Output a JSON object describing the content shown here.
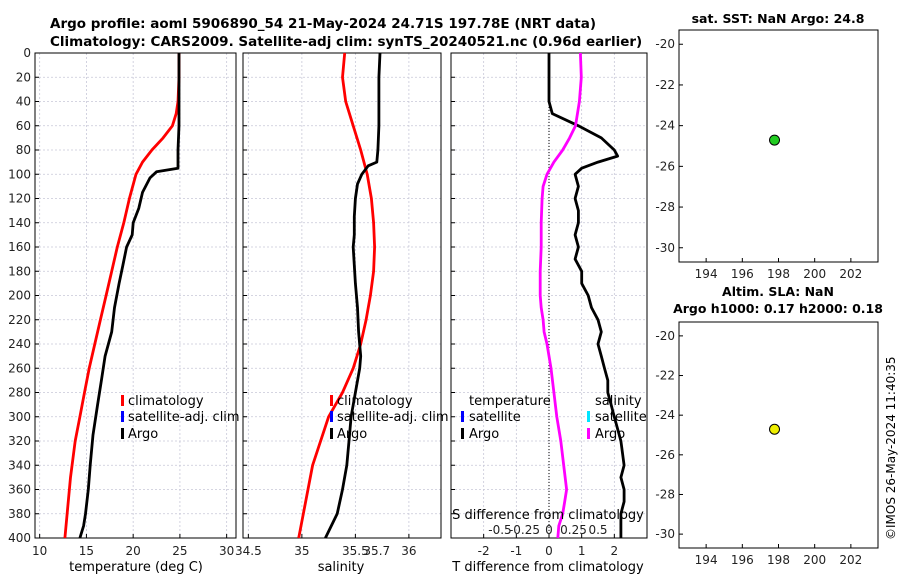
{
  "header": {
    "title_line1": "Argo profile: aoml 5906890_54 21-May-2024 24.71S 197.78E (NRT data)",
    "title_line2": "Climatology: CARS2009. Satellite-adj clim: synTS_20240521.nc (0.96d earlier)"
  },
  "stamp": "©IMOS 26-May-2024 11:40:35",
  "colors": {
    "climatology": "#ff0000",
    "satellite_adj": "#0000ff",
    "argo": "#000000",
    "salinity_diff": "#ff00ff",
    "salinity_satellite": "#00e5ff",
    "sst_marker": "#22cc22",
    "sla_marker": "#eeee00",
    "grid": "#c8c8d8"
  },
  "chart_data": [
    {
      "id": "temperature",
      "type": "line",
      "xlabel": "temperature (deg C)",
      "ylabel": "",
      "xlim": [
        9.5,
        31
      ],
      "ylim": [
        400,
        0
      ],
      "xticks": [
        10,
        15,
        20,
        25,
        30
      ],
      "xtick_labels": [
        "10",
        "15",
        "20",
        "25",
        "30"
      ],
      "yticks": [
        0,
        20,
        40,
        60,
        80,
        100,
        120,
        140,
        160,
        180,
        200,
        220,
        240,
        260,
        280,
        300,
        320,
        340,
        360,
        380,
        400
      ],
      "ytick_labels": [
        "0",
        "20",
        "40",
        "60",
        "80",
        "100",
        "120",
        "140",
        "160",
        "180",
        "200",
        "220",
        "240",
        "260",
        "280",
        "300",
        "320",
        "340",
        "360",
        "380",
        "400"
      ],
      "legend": [
        "climatology",
        "satellite-adj. clim",
        "Argo"
      ],
      "series": [
        {
          "name": "climatology",
          "color": "#ff0000",
          "x": [
            24.9,
            24.9,
            24.8,
            24.6,
            24.2,
            23.2,
            22.0,
            21.0,
            20.3,
            19.6,
            19.0,
            18.3,
            17.7,
            17.1,
            16.5,
            15.9,
            15.3,
            14.8,
            14.3,
            13.8,
            13.3,
            12.7
          ],
          "y": [
            0,
            20,
            40,
            50,
            60,
            70,
            80,
            90,
            100,
            120,
            140,
            160,
            180,
            200,
            220,
            240,
            260,
            280,
            300,
            320,
            350,
            400
          ]
        },
        {
          "name": "Argo",
          "color": "#000000",
          "x": [
            24.9,
            24.9,
            24.9,
            24.9,
            24.8,
            24.8,
            22.5,
            21.8,
            21.0,
            20.6,
            20.0,
            19.9,
            19.3,
            18.9,
            18.5,
            18.0,
            17.7,
            17.0,
            16.6,
            16.2,
            15.7,
            15.4,
            15.2,
            14.9,
            14.7,
            14.3
          ],
          "y": [
            0,
            20,
            40,
            60,
            80,
            95,
            98,
            103,
            115,
            128,
            140,
            150,
            160,
            175,
            190,
            210,
            230,
            250,
            270,
            290,
            315,
            340,
            360,
            380,
            390,
            400
          ]
        }
      ]
    },
    {
      "id": "salinity",
      "type": "line",
      "xlabel": "salinity",
      "ylabel": "",
      "xlim": [
        34.45,
        36.3
      ],
      "ylim": [
        400,
        0
      ],
      "xticks": [
        34.5,
        35,
        35.5,
        36
      ],
      "xtick_labels": [
        "34.5",
        "35",
        "35.5",
        "36"
      ],
      "extra_tick_labels": [
        {
          "x": 35.7,
          "label": "35.7"
        }
      ],
      "legend": [
        "climatology",
        "satellite-adj. clim",
        "Argo"
      ],
      "series": [
        {
          "name": "climatology",
          "color": "#ff0000",
          "x": [
            35.4,
            35.38,
            35.41,
            35.48,
            35.55,
            35.61,
            35.65,
            35.67,
            35.68,
            35.67,
            35.64,
            35.6,
            35.55,
            35.48,
            35.38,
            35.25,
            35.1,
            34.97
          ],
          "y": [
            0,
            20,
            40,
            60,
            80,
            100,
            120,
            140,
            160,
            180,
            200,
            220,
            240,
            260,
            280,
            300,
            340,
            400
          ]
        },
        {
          "name": "Argo",
          "color": "#000000",
          "x": [
            35.73,
            35.72,
            35.72,
            35.72,
            35.71,
            35.7,
            35.62,
            35.56,
            35.52,
            35.5,
            35.49,
            35.49,
            35.48,
            35.49,
            35.5,
            35.52,
            35.53,
            35.55,
            35.54,
            35.5,
            35.46,
            35.44,
            35.42,
            35.38,
            35.33,
            35.22
          ],
          "y": [
            0,
            20,
            40,
            60,
            80,
            90,
            93,
            100,
            108,
            120,
            135,
            150,
            160,
            175,
            190,
            210,
            230,
            250,
            260,
            280,
            300,
            320,
            340,
            360,
            380,
            400
          ]
        }
      ]
    },
    {
      "id": "difference",
      "type": "line",
      "xlabel": "T difference from climatology",
      "top_label": "S difference from climatology",
      "xlim": [
        -3,
        3
      ],
      "ylim": [
        400,
        0
      ],
      "xticks": [
        -2,
        -1,
        0,
        1,
        2
      ],
      "xtick_labels": [
        "-2",
        "-1",
        "0",
        "1",
        "2"
      ],
      "sticks": [
        -0.5,
        -0.25,
        0,
        0.25,
        0.5
      ],
      "stick_labels": [
        "-0.5",
        "-0.25",
        "0",
        "0.25",
        "0.5"
      ],
      "s_scale": 3,
      "legend_temperature": [
        "temperature",
        "satellite",
        "Argo"
      ],
      "legend_salinity": [
        "salinity",
        "satellite",
        "Argo"
      ],
      "series": [
        {
          "name": "T Argo",
          "color": "#000000",
          "x": [
            0.0,
            0.0,
            0.0,
            0.1,
            0.9,
            1.6,
            2.0,
            2.1,
            1.5,
            1.0,
            0.8,
            0.9,
            0.8,
            0.9,
            0.9,
            0.8,
            0.9,
            0.8,
            1.0,
            1.0,
            1.2,
            1.3,
            1.5,
            1.6,
            1.5,
            1.6,
            1.7,
            1.8,
            1.8,
            1.9,
            2.0,
            2.2,
            2.3,
            2.2,
            2.3,
            2.3,
            2.2,
            2.2
          ],
          "y": [
            0,
            20,
            40,
            50,
            60,
            70,
            80,
            85,
            90,
            95,
            100,
            110,
            120,
            130,
            140,
            150,
            160,
            170,
            180,
            190,
            200,
            210,
            220,
            230,
            240,
            250,
            260,
            270,
            280,
            290,
            300,
            320,
            340,
            350,
            360,
            370,
            380,
            400
          ]
        },
        {
          "name": "S Argo",
          "color": "#ff00ff",
          "x": [
            0.32,
            0.33,
            0.31,
            0.27,
            0.21,
            0.14,
            0.05,
            -0.02,
            -0.06,
            -0.07,
            -0.08,
            -0.08,
            -0.09,
            -0.09,
            -0.08,
            -0.06,
            -0.05,
            -0.02,
            0.0,
            0.02,
            0.05,
            0.08,
            0.12,
            0.15,
            0.18,
            0.16,
            0.14,
            0.1,
            0.09
          ],
          "y": [
            0,
            20,
            40,
            60,
            70,
            80,
            90,
            100,
            110,
            120,
            140,
            160,
            180,
            200,
            210,
            220,
            230,
            240,
            250,
            260,
            280,
            300,
            320,
            340,
            360,
            370,
            380,
            390,
            400
          ]
        }
      ]
    },
    {
      "id": "sst",
      "type": "scatter",
      "title": "sat. SST: NaN Argo: 24.8",
      "xlim": [
        192.5,
        203.5
      ],
      "ylim": [
        -30.7,
        -19.3
      ],
      "xticks": [
        194,
        196,
        198,
        200,
        202
      ],
      "xtick_labels": [
        "194",
        "196",
        "198",
        "200",
        "202"
      ],
      "yticks": [
        -20,
        -22,
        -24,
        -26,
        -28,
        -30
      ],
      "ytick_labels": [
        "-20",
        "-22",
        "-24",
        "-26",
        "-28",
        "-30"
      ],
      "points": [
        {
          "x": 197.78,
          "y": -24.71,
          "color": "#22cc22"
        }
      ]
    },
    {
      "id": "sla",
      "type": "scatter",
      "title_line1": "Altim. SLA: NaN",
      "title_line2": "Argo h1000: 0.17 h2000: 0.18",
      "xlim": [
        192.5,
        203.5
      ],
      "ylim": [
        -30.7,
        -19.3
      ],
      "xticks": [
        194,
        196,
        198,
        200,
        202
      ],
      "xtick_labels": [
        "194",
        "196",
        "198",
        "200",
        "202"
      ],
      "yticks": [
        -20,
        -22,
        -24,
        -26,
        -28,
        -30
      ],
      "ytick_labels": [
        "-20",
        "-22",
        "-24",
        "-26",
        "-28",
        "-30"
      ],
      "points": [
        {
          "x": 197.78,
          "y": -24.71,
          "color": "#eeee00"
        }
      ]
    }
  ]
}
